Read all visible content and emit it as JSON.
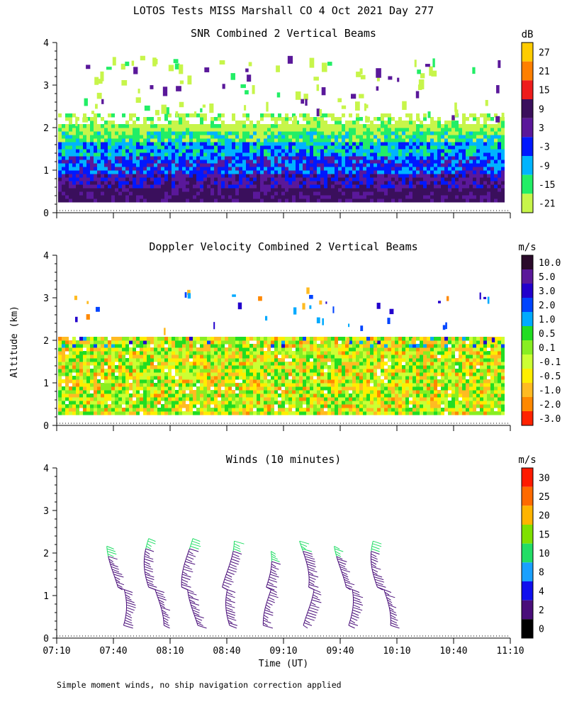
{
  "page_title": "LOTOS Tests MISS Marshall CO   4 Oct 2021 Day 277",
  "y_label": "Altitude (km)",
  "x_label": "Time (UT)",
  "footnote": "Simple moment winds, no ship navigation correction applied",
  "chart_data": [
    {
      "type": "heatmap",
      "title": "SNR Combined 2 Vertical Beams",
      "unit": "dB",
      "ylim": [
        0,
        4
      ],
      "y_ticks": [
        "0",
        "1",
        "2",
        "3",
        "4"
      ],
      "x_ticks": [
        "07:10",
        "07:40",
        "08:10",
        "08:40",
        "09:10",
        "09:40",
        "10:10",
        "10:40",
        "11:10"
      ],
      "colorbar": {
        "labels": [
          "27",
          "21",
          "15",
          "9",
          "3",
          "-3",
          "-9",
          "-15",
          "-21"
        ],
        "colors": [
          "#ffcc00",
          "#ff7f00",
          "#ee1c1c",
          "#3a0f5c",
          "#5a189a",
          "#0018ff",
          "#00b4ff",
          "#22ee66",
          "#c7f54a"
        ]
      },
      "profile": [
        {
          "alt_km": 0.4,
          "level": 3
        },
        {
          "alt_km": 0.75,
          "level": 4
        },
        {
          "alt_km": 1.1,
          "level": 5
        },
        {
          "alt_km": 1.5,
          "level": 6
        },
        {
          "alt_km": 1.8,
          "level": 7
        },
        {
          "alt_km": 2.1,
          "level": 8
        }
      ]
    },
    {
      "type": "heatmap",
      "title": "Doppler Velocity Combined 2 Vertical Beams",
      "unit": "m/s",
      "ylim": [
        0,
        4
      ],
      "y_ticks": [
        "0",
        "1",
        "2",
        "3",
        "4"
      ],
      "colorbar": {
        "labels": [
          "10.0",
          "5.0",
          "3.0",
          "2.0",
          "1.0",
          "0.5",
          "0.1",
          "-0.1",
          "-0.5",
          "-1.0",
          "-2.0",
          "-3.0"
        ],
        "colors": [
          "#2a0a2a",
          "#5a189a",
          "#2200cc",
          "#0044ff",
          "#00aaff",
          "#22dd22",
          "#88ee22",
          "#ccff33",
          "#ffee00",
          "#ffbb22",
          "#ff8800",
          "#ff2200"
        ]
      },
      "dominant_levels": [
        7,
        8,
        9,
        6,
        5
      ]
    },
    {
      "type": "wind-barbs",
      "title": "Winds (10 minutes)",
      "unit": "m/s",
      "ylim": [
        0,
        4
      ],
      "y_ticks": [
        "0",
        "1",
        "2",
        "3",
        "4"
      ],
      "x_ticks": [
        "07:10",
        "07:40",
        "08:10",
        "08:40",
        "09:10",
        "09:40",
        "10:10",
        "10:40",
        "11:10"
      ],
      "colorbar": {
        "labels": [
          "30",
          "25",
          "20",
          "15",
          "10",
          "8",
          "4",
          "2",
          "0"
        ],
        "colors": [
          "#ff1a00",
          "#ff6a00",
          "#ffb400",
          "#7fe000",
          "#22dd66",
          "#1aa0ff",
          "#1010ee",
          "#4a0e7a",
          "#000000"
        ]
      },
      "profile_times_hours": [
        7.67,
        8.0,
        8.33,
        8.67,
        9.0,
        9.33,
        9.67,
        10.0
      ],
      "profile_top_km": [
        2.2,
        2.4,
        2.4,
        2.3,
        2.1,
        2.3,
        2.2,
        2.3
      ]
    }
  ]
}
